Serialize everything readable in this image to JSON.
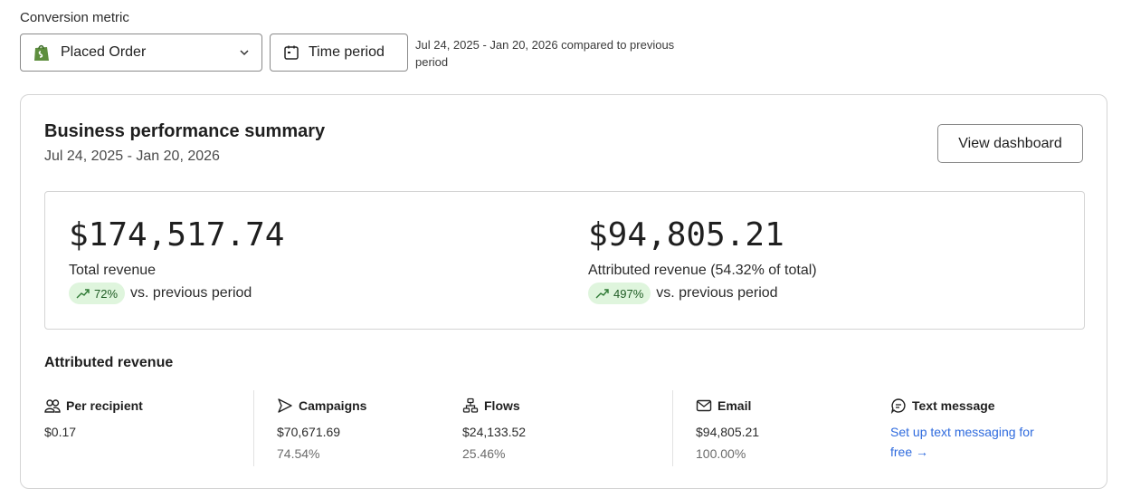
{
  "header": {
    "metric_label": "Conversion metric",
    "metric_value": "Placed Order",
    "store_icon": "shopify-bag-icon",
    "time_button": "Time period",
    "period_note": "Jul 24, 2025 - Jan 20, 2026 compared to previous period"
  },
  "summary": {
    "title": "Business performance summary",
    "date_range": "Jul 24, 2025 - Jan 20, 2026",
    "view_dashboard": "View dashboard",
    "total": {
      "value": "$174,517.74",
      "label": "Total revenue",
      "change": "72%",
      "suffix": "vs. previous period"
    },
    "attributed": {
      "value": "$94,805.21",
      "label": "Attributed revenue (54.32% of total)",
      "change": "497%",
      "suffix": "vs. previous period"
    }
  },
  "attributed_revenue": {
    "title": "Attributed revenue",
    "per_recipient": {
      "label": "Per recipient",
      "value": "$0.17"
    },
    "campaigns": {
      "label": "Campaigns",
      "value": "$70,671.69",
      "percent": "74.54%"
    },
    "flows": {
      "label": "Flows",
      "value": "$24,133.52",
      "percent": "25.46%"
    },
    "email": {
      "label": "Email",
      "value": "$94,805.21",
      "percent": "100.00%"
    },
    "text_message": {
      "label": "Text message",
      "link": "Set up text messaging for free →"
    }
  },
  "colors": {
    "accent_link": "#2f6bde",
    "pill_bg": "#dff5dd",
    "pill_text": "#1f5c24",
    "shopify_green": "#5e8e3e"
  }
}
